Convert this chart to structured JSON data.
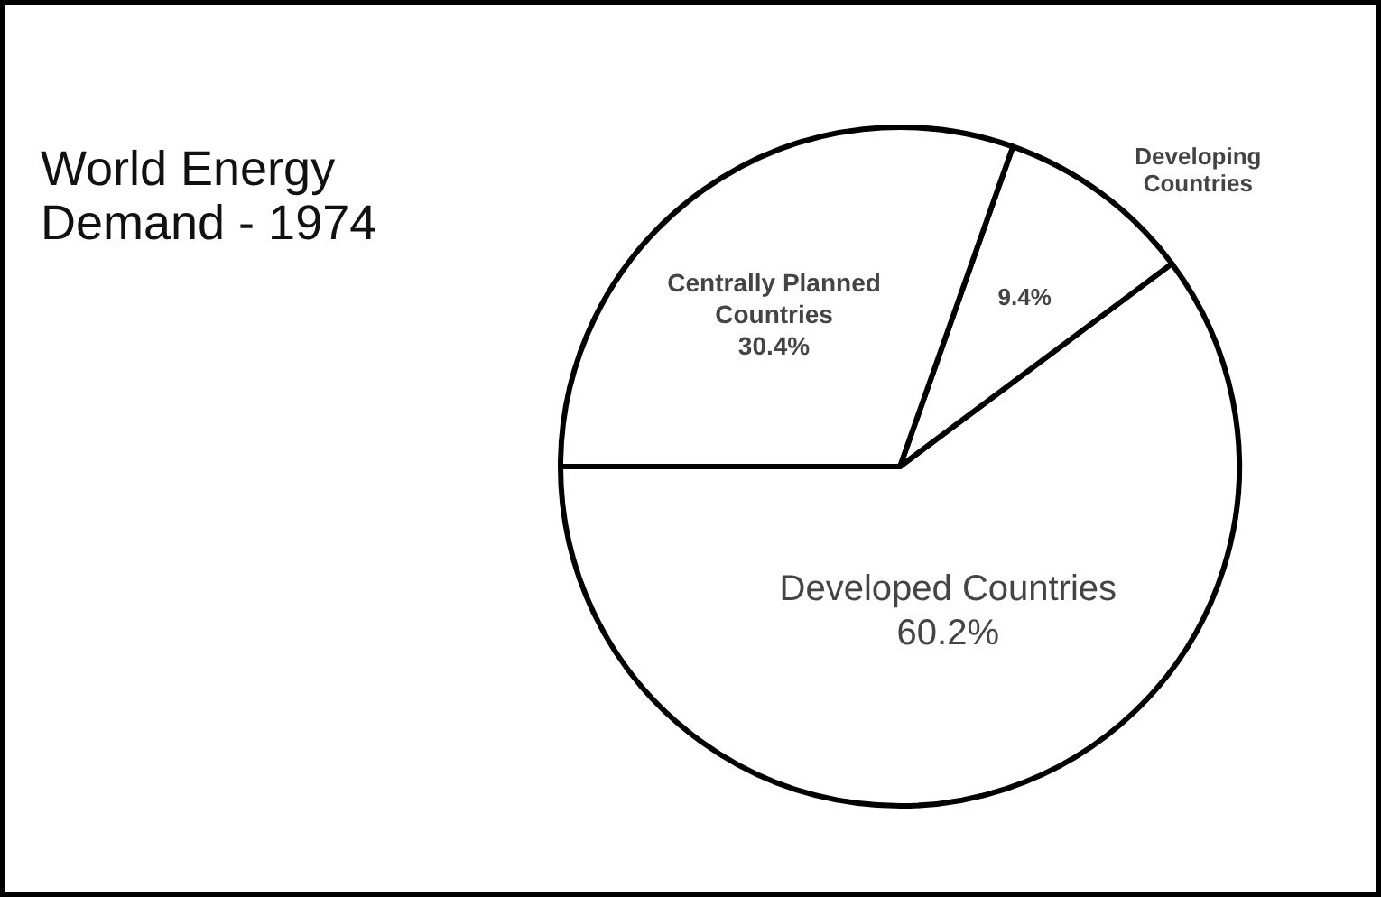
{
  "chart_data": {
    "type": "pie",
    "title": "World Energy\nDemand - 1974",
    "categories": [
      "Developed Countries",
      "Developing Countries",
      "Centrally Planned Countries"
    ],
    "values": [
      60.2,
      9.4,
      30.4
    ],
    "colors": [
      "#ffffff",
      "#ffffff",
      "#ffffff"
    ],
    "value_labels": [
      "60.2%",
      "9.4%",
      "30.4%"
    ]
  }
}
